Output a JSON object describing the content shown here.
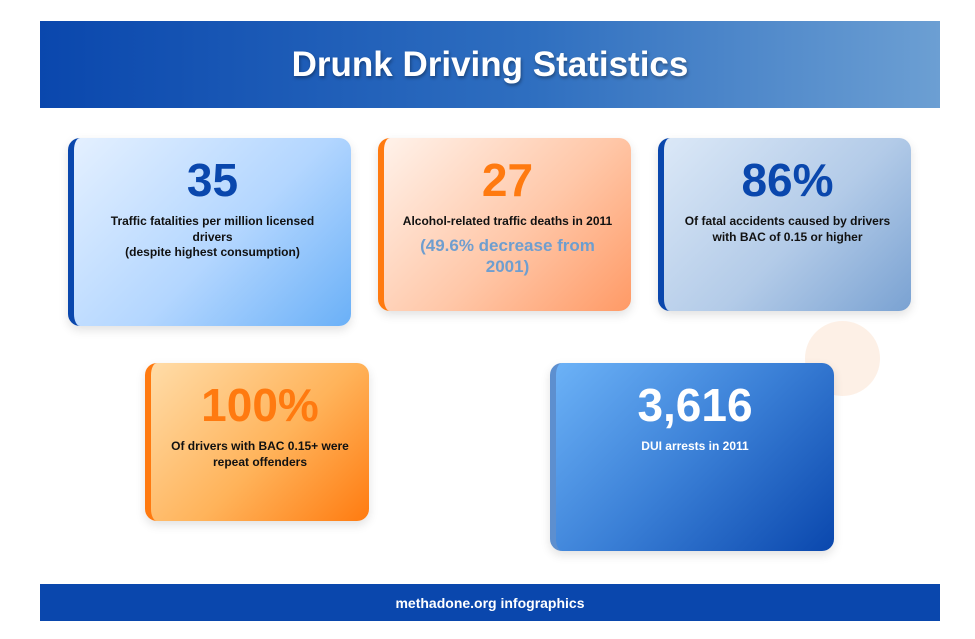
{
  "header": {
    "title": "Drunk Driving Statistics"
  },
  "footer": {
    "text": "methadone.org infographics"
  },
  "cards": [
    {
      "number": "35",
      "desc": "Traffic fatalities per million licensed drivers",
      "note": "(despite highest consumption)"
    },
    {
      "number": "27",
      "desc": "Alcohol-related traffic deaths in 2011",
      "sub": "(49.6% decrease from 2001)"
    },
    {
      "number": "86%",
      "desc": "Of fatal accidents caused by drivers with BAC of 0.15 or higher"
    },
    {
      "number": "100%",
      "desc": "Of drivers with BAC 0.15+ were repeat offenders"
    },
    {
      "number": "3,616",
      "desc": "DUI arrests in 2011"
    }
  ],
  "colors": {
    "brand_blue": "#0a47ad",
    "accent_orange": "#ff7a10"
  }
}
